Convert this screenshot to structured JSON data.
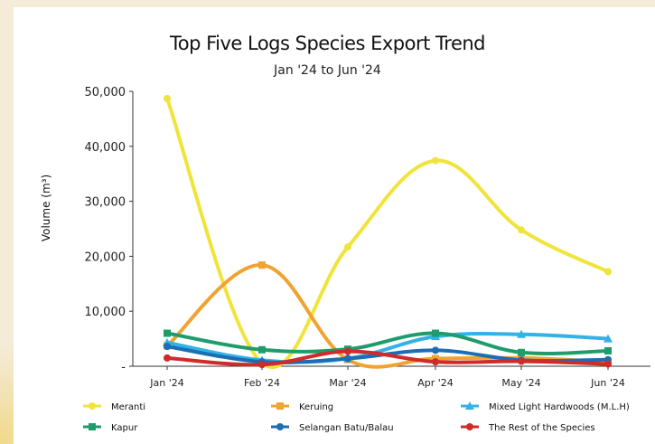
{
  "chart_data": {
    "type": "line",
    "title": "Top Five Logs Species Export Trend",
    "subtitle": "Jan '24 to Jun '24",
    "xlabel": "",
    "ylabel": "Volume (m³)",
    "categories": [
      "Jan '24",
      "Feb '24",
      "Mar '24",
      "Apr '24",
      "May '24",
      "Jun '24"
    ],
    "ylim": [
      0,
      50000
    ],
    "yticks": [
      0,
      10000,
      20000,
      30000,
      40000,
      50000
    ],
    "ytick_labels": [
      "-",
      "10,000",
      "20,000",
      "30,000",
      "40,000",
      "50,000"
    ],
    "grid": false,
    "legend_position": "bottom",
    "series": [
      {
        "name": "Meranti",
        "color": "#f0e43a",
        "marker": "circle",
        "values": [
          48700,
          600,
          21700,
          37400,
          24800,
          17200
        ]
      },
      {
        "name": "Keruing",
        "color": "#f0a331",
        "marker": "square",
        "values": [
          3700,
          18400,
          1200,
          1400,
          1500,
          800
        ]
      },
      {
        "name": "Mixed Light Hardwoods (M.L.H)",
        "color": "#33b2e6",
        "marker": "triangle",
        "values": [
          4300,
          1100,
          1400,
          5400,
          5800,
          5000
        ]
      },
      {
        "name": "Kapur",
        "color": "#1f9c6b",
        "marker": "square",
        "values": [
          6000,
          3000,
          3100,
          6000,
          2500,
          2800
        ]
      },
      {
        "name": "Selangan Batu/Balau",
        "color": "#1c6db3",
        "marker": "circle",
        "values": [
          3600,
          800,
          1400,
          2900,
          1100,
          1200
        ]
      },
      {
        "name": "The Rest of the Species",
        "color": "#d02a2a",
        "marker": "circle",
        "values": [
          1500,
          300,
          2700,
          800,
          900,
          400
        ]
      }
    ]
  }
}
